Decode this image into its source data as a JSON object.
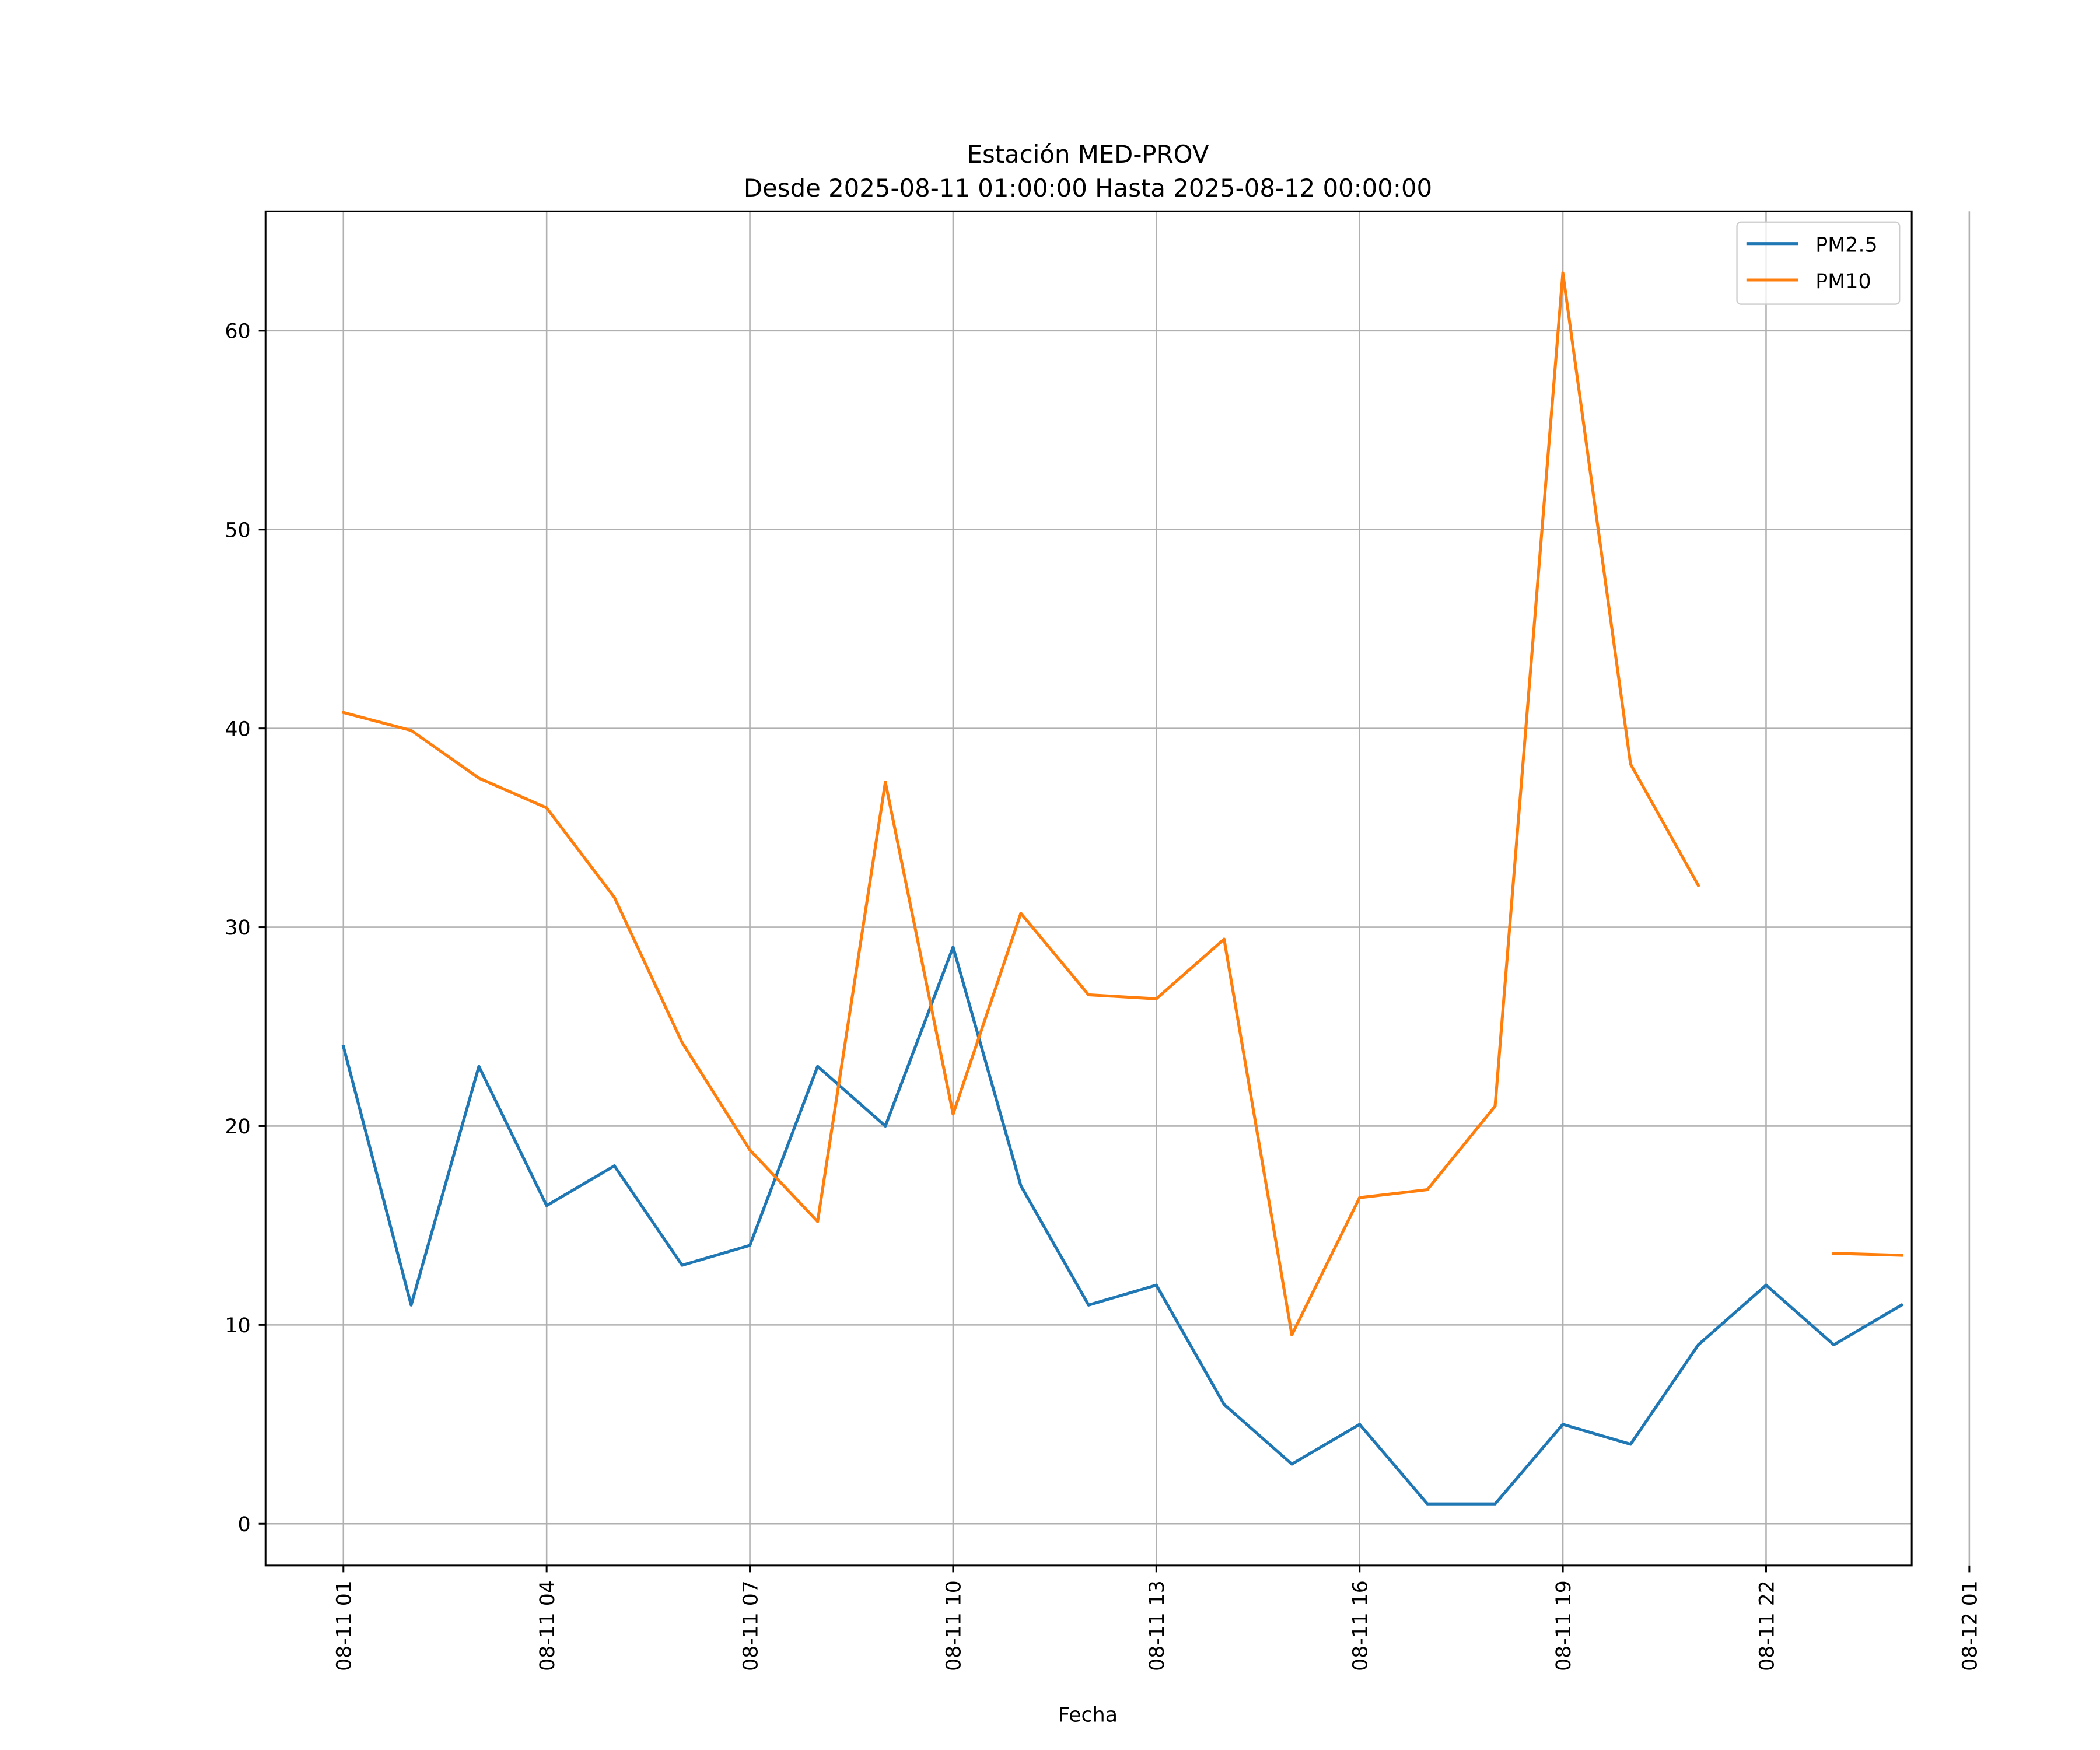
{
  "chart_data": {
    "type": "line",
    "title": "Estación MED-PROV",
    "subtitle": "Desde 2025-08-11 01:00:00 Hasta 2025-08-12 00:00:00",
    "xlabel": "Fecha",
    "ylabel": "",
    "grid": true,
    "legend_position": "top-right",
    "x": [
      "08-11 01",
      "08-11 02",
      "08-11 03",
      "08-11 04",
      "08-11 05",
      "08-11 06",
      "08-11 07",
      "08-11 08",
      "08-11 09",
      "08-11 10",
      "08-11 11",
      "08-11 12",
      "08-11 13",
      "08-11 14",
      "08-11 15",
      "08-11 16",
      "08-11 17",
      "08-11 18",
      "08-11 19",
      "08-11 20",
      "08-11 21",
      "08-11 22",
      "08-11 23",
      "08-12 00"
    ],
    "x_hours": [
      1,
      2,
      3,
      4,
      5,
      6,
      7,
      8,
      9,
      10,
      11,
      12,
      13,
      14,
      15,
      16,
      17,
      18,
      19,
      20,
      21,
      22,
      23,
      24
    ],
    "xlim_hours": [
      -0.15,
      24.15
    ],
    "x_ticks": [
      {
        "hour": 1,
        "label": "08-11 01"
      },
      {
        "hour": 4,
        "label": "08-11 04"
      },
      {
        "hour": 7,
        "label": "08-11 07"
      },
      {
        "hour": 10,
        "label": "08-11 10"
      },
      {
        "hour": 13,
        "label": "08-11 13"
      },
      {
        "hour": 16,
        "label": "08-11 16"
      },
      {
        "hour": 19,
        "label": "08-11 19"
      },
      {
        "hour": 22,
        "label": "08-11 22"
      },
      {
        "hour": 25,
        "label": "08-12 01"
      }
    ],
    "ylim": [
      -2.1,
      66
    ],
    "y_ticks": [
      {
        "value": 0,
        "label": "0"
      },
      {
        "value": 10,
        "label": "10"
      },
      {
        "value": 20,
        "label": "20"
      },
      {
        "value": 30,
        "label": "30"
      },
      {
        "value": 40,
        "label": "40"
      },
      {
        "value": 50,
        "label": "50"
      },
      {
        "value": 60,
        "label": "60"
      }
    ],
    "series": [
      {
        "name": "PM2.5",
        "color": "#1f77b4",
        "values": [
          24,
          11,
          23,
          16,
          18,
          13,
          14,
          23,
          20,
          29,
          17,
          11,
          12,
          6,
          3,
          5,
          1,
          1,
          5,
          4,
          9,
          12,
          9,
          11
        ]
      },
      {
        "name": "PM10",
        "color": "#ff7f0e",
        "values": [
          40.8,
          39.9,
          37.5,
          36.0,
          31.5,
          24.2,
          18.8,
          15.2,
          37.3,
          20.6,
          30.7,
          26.6,
          26.4,
          29.4,
          9.5,
          16.4,
          16.8,
          21.0,
          62.9,
          38.2,
          32.1,
          null,
          13.6,
          13.5
        ]
      }
    ]
  }
}
